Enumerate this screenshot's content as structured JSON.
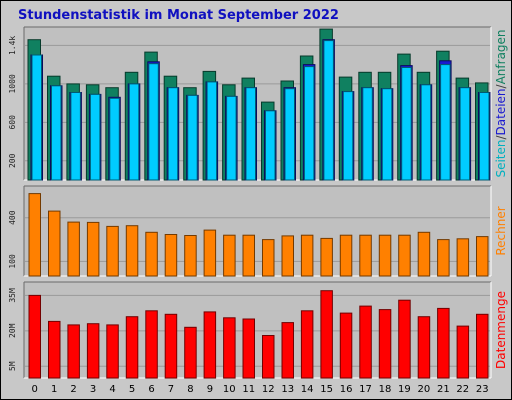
{
  "chart_data": {
    "title": "Stundenstatistik im Monat September 2022",
    "type": "bar",
    "categories": [
      "0",
      "1",
      "2",
      "3",
      "4",
      "5",
      "6",
      "7",
      "8",
      "9",
      "10",
      "11",
      "12",
      "13",
      "14",
      "15",
      "16",
      "17",
      "18",
      "19",
      "20",
      "21",
      "22",
      "23"
    ],
    "panels": [
      {
        "id": "pages",
        "ylabel_parts": [
          {
            "text": "Seiten",
            "color": "#00b0c0"
          },
          {
            "text": "/",
            "color": "#404040"
          },
          {
            "text": "Dateien",
            "color": "#1a1ad0"
          },
          {
            "text": "/",
            "color": "#404040"
          },
          {
            "text": "Anfragen",
            "color": "#108060"
          }
        ],
        "ylim": [
          0,
          1550
        ],
        "yticks": [
          {
            "v": 200,
            "label": "200"
          },
          {
            "v": 600,
            "label": "600"
          },
          {
            "v": 1000,
            "label": "1000"
          },
          {
            "v": 1400,
            "label": "1.4k"
          }
        ],
        "series": [
          {
            "name": "Anfragen",
            "color": "#108060",
            "values": [
              1460,
              1080,
              1000,
              990,
              960,
              1120,
              1330,
              1080,
              960,
              1130,
              990,
              1060,
              810,
              1030,
              1290,
              1570,
              1070,
              1120,
              1120,
              1310,
              1120,
              1340,
              1060,
              1010
            ]
          },
          {
            "name": "Dateien",
            "color": "#1a1ad0",
            "values": [
              1300,
              980,
              910,
              890,
              860,
              1000,
              1230,
              960,
              880,
              1020,
              870,
              960,
              720,
              960,
              1200,
              1460,
              920,
              960,
              950,
              1190,
              990,
              1240,
              960,
              910
            ]
          },
          {
            "name": "Seiten",
            "color": "#00ccff",
            "values": [
              1300,
              980,
              910,
              890,
              850,
              1000,
              1210,
              960,
              880,
              1020,
              870,
              960,
              720,
              950,
              1180,
              1450,
              920,
              960,
              950,
              1170,
              990,
              1200,
              960,
              910
            ]
          }
        ]
      },
      {
        "id": "hosts",
        "ylabel_parts": [
          {
            "text": "Rechner",
            "color": "#ff8000"
          }
        ],
        "ylim": [
          0,
          590
        ],
        "yticks": [
          {
            "v": 100,
            "label": "100"
          },
          {
            "v": 400,
            "label": "400"
          }
        ],
        "series": [
          {
            "name": "Rechner",
            "color": "#ff8000",
            "values": [
              565,
              445,
              370,
              368,
              340,
              345,
              300,
              285,
              278,
              315,
              280,
              280,
              250,
              275,
              280,
              258,
              280,
              280,
              280,
              280,
              300,
              250,
              255,
              270
            ]
          }
        ]
      },
      {
        "id": "volume",
        "ylabel_parts": [
          {
            "text": "Datenmenge",
            "color": "#ff0000"
          }
        ],
        "ylim": [
          0,
          39
        ],
        "yticks": [
          {
            "v": 5,
            "label": "5M"
          },
          {
            "v": 20,
            "label": "20M"
          },
          {
            "v": 35,
            "label": "35M"
          }
        ],
        "series": [
          {
            "name": "Datenmenge",
            "color": "#ff0000",
            "values": [
              35,
              24,
              22.5,
              23,
              22.5,
              26,
              28.5,
              27,
              21.5,
              28,
              25.5,
              25,
              18,
              23.5,
              28.5,
              37,
              27.5,
              30.5,
              29,
              33,
              26,
              29.5,
              22,
              27
            ]
          }
        ]
      }
    ]
  }
}
